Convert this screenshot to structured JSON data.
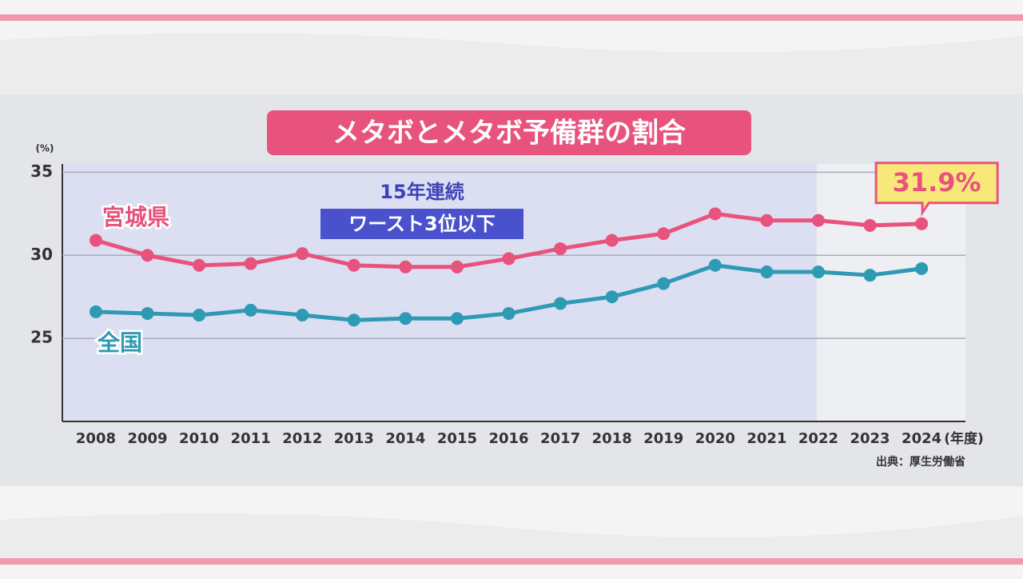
{
  "chart_data": {
    "type": "line",
    "title": "メタボとメタボ予備群の割合",
    "ylabel": "(%)",
    "xlabel": "(年度)",
    "source": "出典：厚生労働省",
    "annotations": [
      "15年連続",
      "ワースト3位以下"
    ],
    "x": [
      2008,
      2009,
      2010,
      2011,
      2012,
      2013,
      2014,
      2015,
      2016,
      2017,
      2018,
      2019,
      2020,
      2021,
      2022,
      2023,
      2024
    ],
    "xlim": [
      2007.35,
      2024.85
    ],
    "ylim": [
      20,
      35.5
    ],
    "yticks": [
      25,
      30,
      35
    ],
    "grid": true,
    "series": [
      {
        "name": "宮城県",
        "color": "#e8537d",
        "values": [
          30.9,
          30.0,
          29.4,
          29.5,
          30.1,
          29.4,
          29.3,
          29.3,
          29.8,
          30.4,
          30.9,
          31.3,
          32.5,
          32.1,
          32.1,
          31.8,
          31.9
        ],
        "value_labels": [
          null,
          null,
          null,
          null,
          null,
          null,
          null,
          null,
          null,
          null,
          null,
          null,
          null,
          null,
          null,
          null,
          "31.9%"
        ]
      },
      {
        "name": "全国",
        "color": "#2f9ab4",
        "values": [
          26.6,
          26.5,
          26.4,
          26.7,
          26.4,
          26.1,
          26.2,
          26.2,
          26.5,
          27.1,
          27.5,
          28.3,
          29.4,
          29.0,
          29.0,
          28.8,
          29.2
        ]
      }
    ]
  }
}
